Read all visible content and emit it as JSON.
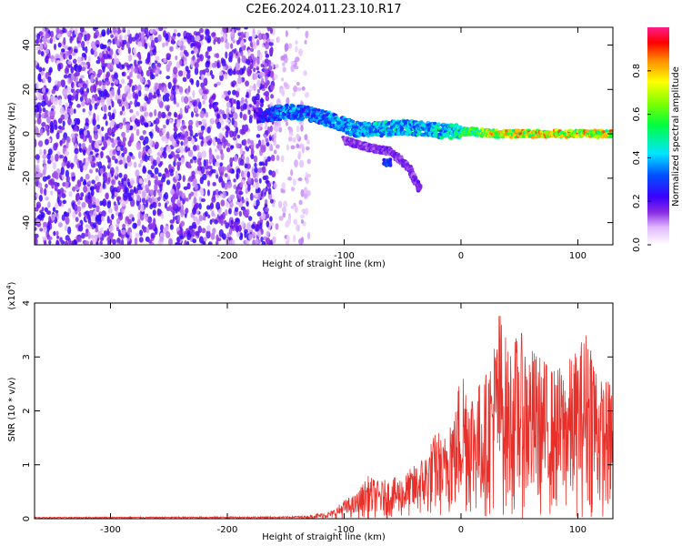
{
  "chart_data": [
    {
      "type": "heatmap",
      "title": "C2E6.2024.011.23.10.R17",
      "xlabel": "Height of straight line (km)",
      "ylabel": "Frequency (Hz)",
      "xlim": [
        -365,
        130
      ],
      "ylim": [
        -50,
        48
      ],
      "xticks": [
        -300,
        -200,
        -100,
        0,
        100
      ],
      "yticks": [
        -40,
        -20,
        0,
        20,
        40
      ],
      "colorbar": {
        "label": "Normalized spectral amplitude",
        "range": [
          0.0,
          1.0
        ],
        "ticks": [
          "0.0",
          "0.2",
          "0.4",
          "0.6",
          "0.8"
        ],
        "colormap": "rainbow-magenta"
      },
      "features": [
        {
          "kind": "noise",
          "x_range": [
            -365,
            -160
          ],
          "y_range": [
            -50,
            48
          ],
          "level": 0.15
        },
        {
          "kind": "sparse-noise",
          "x_range": [
            -160,
            -130
          ],
          "y_range": [
            -50,
            48
          ],
          "level": 0.05
        },
        {
          "kind": "line",
          "x": [
            -175,
            -150,
            -130,
            -110,
            -90,
            -70,
            -50,
            -30,
            -10,
            10,
            30,
            60,
            90,
            130
          ],
          "y": [
            8,
            10,
            9,
            6,
            2,
            2,
            3,
            2,
            1,
            1,
            0,
            0,
            0,
            0
          ],
          "amplitude": [
            0.25,
            0.45,
            0.4,
            0.45,
            0.45,
            0.5,
            0.5,
            0.5,
            0.55,
            0.7,
            0.9,
            0.9,
            0.9,
            0.9
          ]
        },
        {
          "kind": "branch",
          "x": [
            -100,
            -80,
            -60,
            -45,
            -35
          ],
          "y": [
            -3,
            -6,
            -8,
            -15,
            -25
          ],
          "amplitude": 0.2
        },
        {
          "kind": "blob",
          "x": -63,
          "y": -13,
          "amplitude": 0.35
        }
      ]
    },
    {
      "type": "line",
      "xlabel": "Height of straight line (km)",
      "ylabel": "SNR (10 * v/v)",
      "yscale_label": "(x10",
      "yscale_exponent": "4",
      "xlim": [
        -365,
        130
      ],
      "ylim": [
        0,
        4
      ],
      "xticks": [
        -300,
        -200,
        -100,
        0,
        100
      ],
      "yticks": [
        0,
        1,
        2,
        3,
        4
      ],
      "color": "#e8302a",
      "envelope": {
        "x": [
          -365,
          -150,
          -130,
          -110,
          -100,
          -90,
          -80,
          -70,
          -60,
          -50,
          -40,
          -30,
          -20,
          -15,
          -10,
          -5,
          0,
          10,
          20,
          30,
          33,
          40,
          50,
          60,
          70,
          80,
          90,
          100,
          110,
          120,
          130
        ],
        "y": [
          0.03,
          0.04,
          0.06,
          0.15,
          0.35,
          0.45,
          0.8,
          0.7,
          0.75,
          0.8,
          1.0,
          1.25,
          1.7,
          1.4,
          2.2,
          2.0,
          3.0,
          2.5,
          2.6,
          3.5,
          4.0,
          3.2,
          3.5,
          3.2,
          3.0,
          2.8,
          2.9,
          3.2,
          3.7,
          2.6,
          2.6
        ]
      }
    }
  ]
}
